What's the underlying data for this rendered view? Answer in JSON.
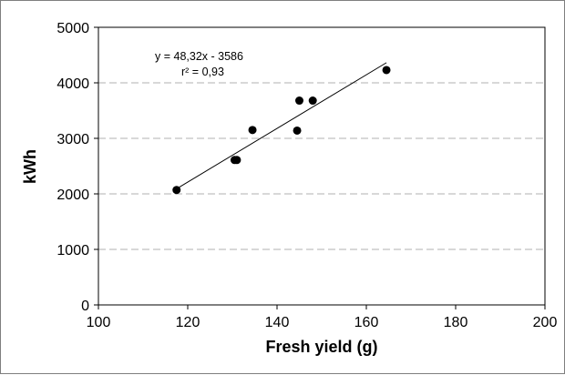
{
  "chart_data": {
    "type": "scatter",
    "xlabel": "Fresh yield (g)",
    "ylabel": "kWh",
    "xlim": [
      100,
      200
    ],
    "ylim": [
      0,
      5000
    ],
    "x_ticks": [
      100,
      120,
      140,
      160,
      180,
      200
    ],
    "y_ticks": [
      0,
      1000,
      2000,
      3000,
      4000,
      5000
    ],
    "grid": "horizontal dashed",
    "legend": "none",
    "point_color": "#000000",
    "points": [
      {
        "x": 117.5,
        "y": 2070
      },
      {
        "x": 130.5,
        "y": 2610
      },
      {
        "x": 131.0,
        "y": 2610
      },
      {
        "x": 134.5,
        "y": 3150
      },
      {
        "x": 144.5,
        "y": 3140
      },
      {
        "x": 145.0,
        "y": 3680
      },
      {
        "x": 148.0,
        "y": 3680
      },
      {
        "x": 164.5,
        "y": 4230
      }
    ],
    "trendline": {
      "slope": 48.32,
      "intercept": -3586,
      "x_start": 117.5,
      "x_end": 164.5
    },
    "annotations": {
      "equation": "y = 48,32x  - 3586",
      "r_squared": "r² = 0,93"
    }
  }
}
